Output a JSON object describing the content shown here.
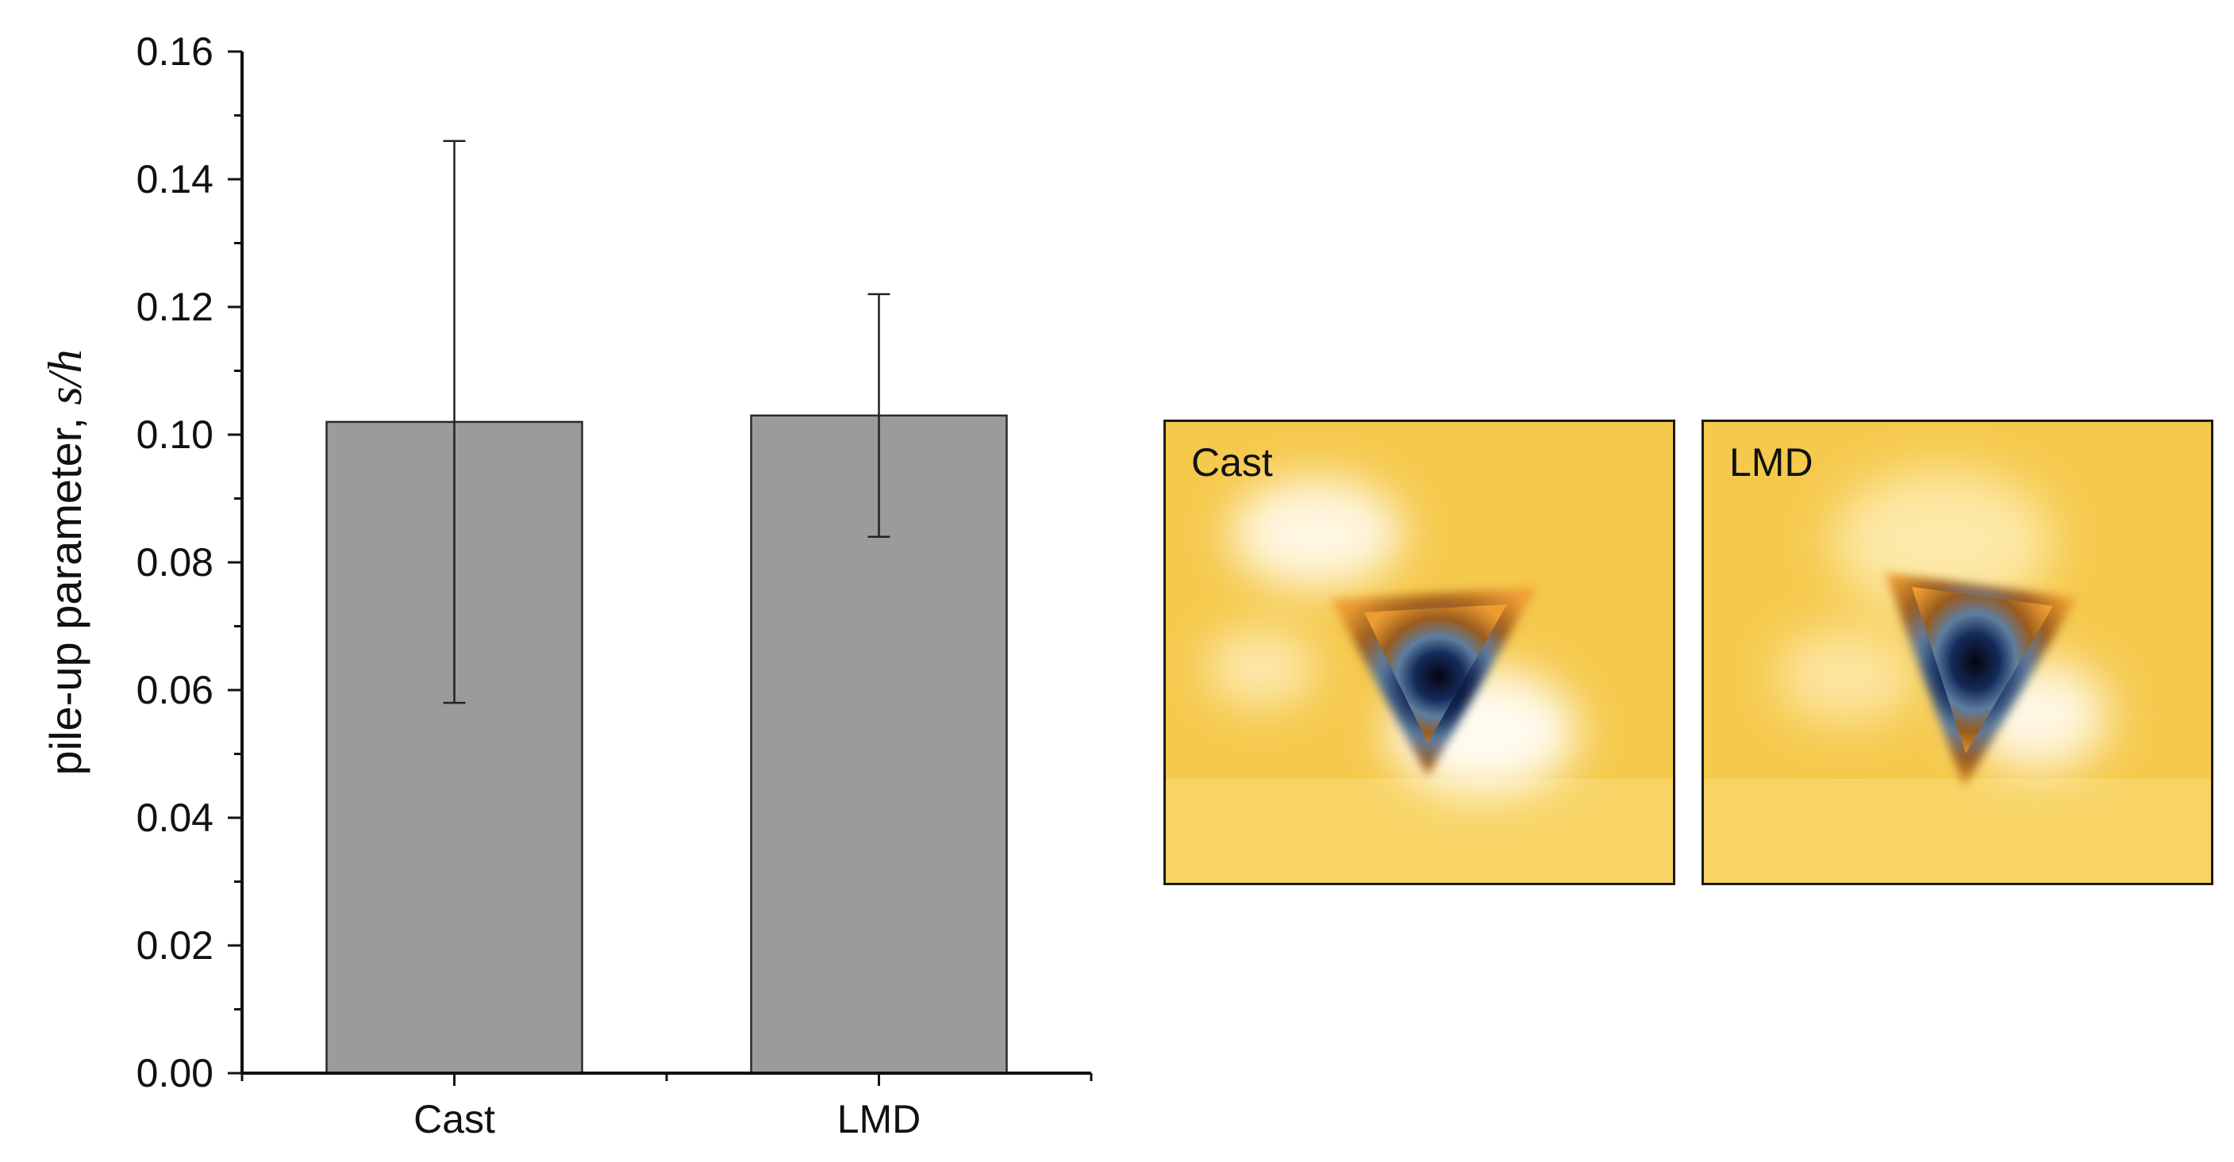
{
  "chart_data": {
    "type": "bar",
    "categories": [
      "Cast",
      "LMD"
    ],
    "values": [
      0.102,
      0.103
    ],
    "error": [
      0.044,
      0.019
    ],
    "ylabel_text": "pile-up parameter, ",
    "ylabel_italic": "s/h",
    "ylim": [
      0,
      0.16
    ],
    "yticks": [
      "0.00",
      "0.02",
      "0.04",
      "0.06",
      "0.08",
      "0.10",
      "0.12",
      "0.14",
      "0.16"
    ],
    "grid": false,
    "bar_color": "#9b9b9b"
  },
  "images": [
    {
      "label": "Cast",
      "content": "AFM topography of indent",
      "colors": [
        "#f6c84a",
        "#fff4d8",
        "#0a0a1e"
      ]
    },
    {
      "label": "LMD",
      "content": "AFM topography of indent",
      "colors": [
        "#f6c84a",
        "#fff4d8",
        "#0a0a1e"
      ]
    }
  ]
}
